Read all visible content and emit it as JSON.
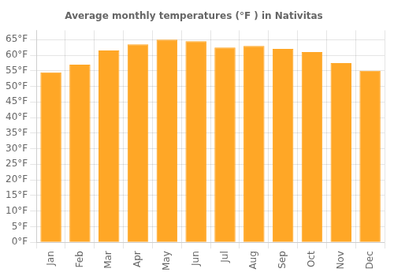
{
  "chart_data": {
    "type": "bar",
    "title": "Average monthly temperatures (°F ) in Nativitas",
    "categories": [
      "Jan",
      "Feb",
      "Mar",
      "Apr",
      "May",
      "Jun",
      "Jul",
      "Aug",
      "Sep",
      "Oct",
      "Nov",
      "Dec"
    ],
    "values": [
      54.5,
      57.0,
      61.5,
      63.5,
      65.0,
      64.5,
      62.5,
      63.0,
      62.0,
      61.0,
      57.5,
      55.0
    ],
    "color": "#FFA726",
    "ylim": [
      0,
      68
    ],
    "yticks": [
      {
        "value": 0,
        "label": "0°F"
      },
      {
        "value": 5,
        "label": "5°F"
      },
      {
        "value": 10,
        "label": "10°F"
      },
      {
        "value": 15,
        "label": "15°F"
      },
      {
        "value": 20,
        "label": "20°F"
      },
      {
        "value": 25,
        "label": "25°F"
      },
      {
        "value": 30,
        "label": "30°F"
      },
      {
        "value": 35,
        "label": "35°F"
      },
      {
        "value": 40,
        "label": "40°F"
      },
      {
        "value": 45,
        "label": "45°F"
      },
      {
        "value": 50,
        "label": "50°F"
      },
      {
        "value": 55,
        "label": "55°F"
      },
      {
        "value": 60,
        "label": "60°F"
      },
      {
        "value": 65,
        "label": "65°F"
      }
    ],
    "grid": true
  }
}
